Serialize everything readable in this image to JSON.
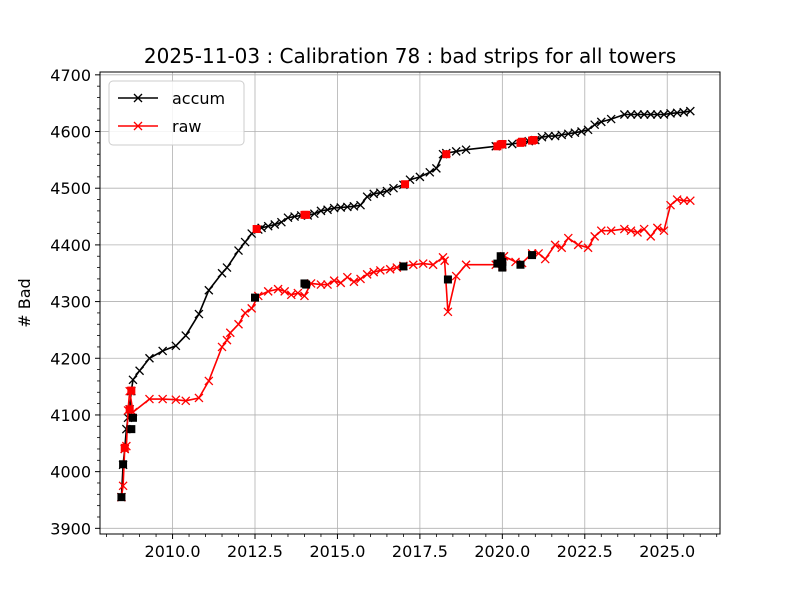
{
  "chart_data": {
    "type": "line",
    "title": "2025-11-03 : Calibration 78 : bad strips for all towers",
    "xlabel": "",
    "ylabel": "# Bad",
    "xlim": [
      2007.8,
      2026.6
    ],
    "ylim": [
      3890,
      4705
    ],
    "xticks": [
      2010.0,
      2012.5,
      2015.0,
      2017.5,
      2020.0,
      2022.5,
      2025.0
    ],
    "xtick_labels": [
      "2010.0",
      "2012.5",
      "2015.0",
      "2017.5",
      "2020.0",
      "2022.5",
      "2025.0"
    ],
    "yticks": [
      3900,
      4000,
      4100,
      4200,
      4300,
      4400,
      4500,
      4600,
      4700
    ],
    "ytick_labels": [
      "3900",
      "4000",
      "4100",
      "4200",
      "4300",
      "4400",
      "4500",
      "4600",
      "4700"
    ],
    "grid": true,
    "legend": {
      "position": "upper-left",
      "entries": [
        "accum",
        "raw"
      ]
    },
    "series": [
      {
        "name": "accum",
        "color": "#000000",
        "marker": "x",
        "x": [
          2008.45,
          2008.5,
          2008.55,
          2008.6,
          2008.65,
          2008.7,
          2008.75,
          2008.8,
          2009.0,
          2009.3,
          2009.7,
          2010.1,
          2010.4,
          2010.8,
          2011.1,
          2011.5,
          2011.65,
          2012.0,
          2012.2,
          2012.4,
          2012.6,
          2012.7,
          2012.9,
          2013.1,
          2013.3,
          2013.5,
          2013.7,
          2013.9,
          2014.1,
          2014.3,
          2014.5,
          2014.7,
          2014.9,
          2015.1,
          2015.3,
          2015.5,
          2015.7,
          2015.9,
          2016.1,
          2016.3,
          2016.5,
          2016.7,
          2017.0,
          2017.2,
          2017.5,
          2017.8,
          2018.0,
          2018.2,
          2018.3,
          2018.6,
          2018.9,
          2019.8,
          2020.0,
          2020.3,
          2020.6,
          2020.8,
          2021.0,
          2021.2,
          2021.4,
          2021.6,
          2021.8,
          2022.0,
          2022.2,
          2022.4,
          2022.6,
          2022.8,
          2023.0,
          2023.3,
          2023.7,
          2023.9,
          2024.1,
          2024.3,
          2024.5,
          2024.7,
          2024.9,
          2025.1,
          2025.3,
          2025.5,
          2025.7
        ],
        "y": [
          3955,
          4012,
          4040,
          4075,
          4095,
          4110,
          4142,
          4162,
          4178,
          4200,
          4213,
          4222,
          4240,
          4278,
          4320,
          4350,
          4360,
          4390,
          4405,
          4420,
          4427,
          4430,
          4433,
          4436,
          4440,
          4448,
          4450,
          4452,
          4452,
          4455,
          4460,
          4462,
          4465,
          4466,
          4467,
          4468,
          4470,
          4485,
          4490,
          4492,
          4495,
          4500,
          4506,
          4515,
          4520,
          4528,
          4535,
          4560,
          4562,
          4565,
          4568,
          4574,
          4577,
          4578,
          4581,
          4583,
          4585,
          4590,
          4592,
          4592,
          4594,
          4596,
          4598,
          4600,
          4603,
          4612,
          4617,
          4622,
          4630,
          4630,
          4630,
          4630,
          4630,
          4630,
          4630,
          4632,
          4633,
          4634,
          4636
        ]
      },
      {
        "name": "raw",
        "color": "#ff0000",
        "marker": "x",
        "x": [
          2008.45,
          2008.5,
          2008.55,
          2008.6,
          2008.65,
          2008.7,
          2008.8,
          2009.3,
          2009.7,
          2010.1,
          2010.4,
          2010.8,
          2011.1,
          2011.5,
          2011.65,
          2011.75,
          2012.0,
          2012.2,
          2012.4,
          2012.6,
          2012.9,
          2013.2,
          2013.4,
          2013.6,
          2013.8,
          2014.0,
          2014.2,
          2014.5,
          2014.7,
          2014.9,
          2015.1,
          2015.3,
          2015.5,
          2015.7,
          2015.9,
          2016.1,
          2016.3,
          2016.6,
          2016.8,
          2017.0,
          2017.3,
          2017.6,
          2017.9,
          2018.2,
          2018.25,
          2018.35,
          2018.6,
          2018.9,
          2019.8,
          2020.0,
          2020.05,
          2020.4,
          2020.6,
          2020.9,
          2021.1,
          2021.3,
          2021.6,
          2021.8,
          2022.0,
          2022.3,
          2022.6,
          2022.8,
          2023.0,
          2023.3,
          2023.7,
          2023.9,
          2024.1,
          2024.3,
          2024.5,
          2024.7,
          2024.9,
          2025.1,
          2025.3,
          2025.5,
          2025.7
        ],
        "y": [
          3955,
          3975,
          4040,
          4045,
          4108,
          4142,
          4105,
          4128,
          4128,
          4127,
          4125,
          4130,
          4160,
          4220,
          4232,
          4245,
          4260,
          4280,
          4288,
          4310,
          4318,
          4322,
          4318,
          4312,
          4315,
          4310,
          4332,
          4330,
          4330,
          4337,
          4333,
          4343,
          4335,
          4340,
          4348,
          4352,
          4355,
          4357,
          4360,
          4363,
          4365,
          4367,
          4365,
          4378,
          4372,
          4282,
          4345,
          4365,
          4365,
          4362,
          4380,
          4370,
          4368,
          4385,
          4385,
          4375,
          4400,
          4395,
          4412,
          4400,
          4395,
          4415,
          4425,
          4425,
          4428,
          4425,
          4422,
          4428,
          4415,
          4430,
          4425,
          4470,
          4480,
          4478,
          4478
        ]
      }
    ],
    "highlight_series": [
      {
        "name": "",
        "color": "#000000",
        "marker": "square",
        "x": [
          2008.45,
          2008.5,
          2008.75,
          2008.8,
          2012.5,
          2014.0,
          2014.05,
          2017.0,
          2018.35,
          2019.85,
          2019.95,
          2020.0,
          2020.0,
          2020.55,
          2020.9
        ],
        "y": [
          3955,
          4013,
          4075,
          4095,
          4307,
          4332,
          4330,
          4362,
          4339,
          4367,
          4380,
          4370,
          4360,
          4365,
          4382
        ]
      },
      {
        "name": "",
        "color": "#ff0000",
        "marker": "square",
        "x": [
          2008.55,
          2008.7,
          2008.75,
          2012.55,
          2014.0,
          2014.05,
          2017.05,
          2018.3,
          2019.85,
          2019.95,
          2020.0,
          2020.55,
          2020.6,
          2020.9,
          2020.95
        ],
        "y": [
          4042,
          4110,
          4143,
          4428,
          4453,
          4453,
          4507,
          4560,
          4574,
          4577,
          4578,
          4580,
          4582,
          4584,
          4585
        ]
      }
    ]
  }
}
